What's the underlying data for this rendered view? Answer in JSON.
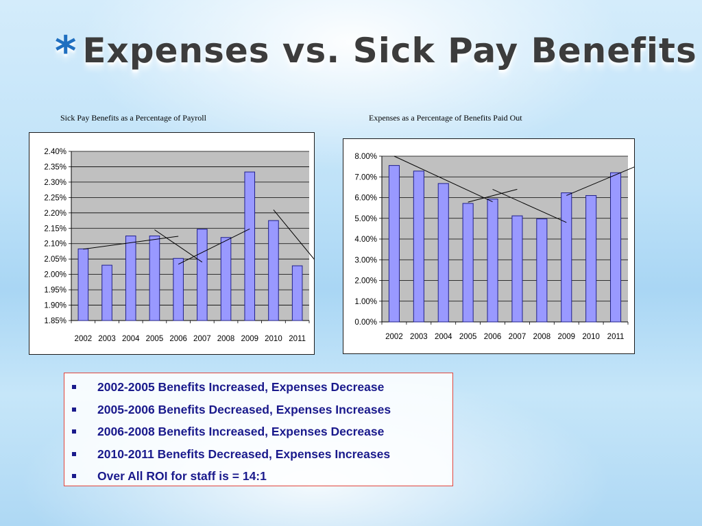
{
  "slide": {
    "title_marker": "*",
    "title": "Expenses vs. Sick Pay Benefits",
    "bullets": [
      "2002-2005 Benefits Increased, Expenses Decrease",
      "2005-2006 Benefits Decreased, Expenses Increases",
      "2006-2008 Benefits Increased, Expenses Decrease",
      "2010-2011 Benefits Decreased, Expenses Increases",
      "Over All ROI for staff is =  14:1"
    ]
  },
  "chart_data": [
    {
      "type": "bar",
      "title": "Sick Pay Benefits as a Percentage of Payroll",
      "categories": [
        "2002",
        "2003",
        "2004",
        "2005",
        "2006",
        "2007",
        "2008",
        "2009",
        "2010",
        "2011"
      ],
      "values": [
        2.083,
        2.03,
        2.125,
        2.125,
        2.052,
        2.147,
        2.12,
        2.333,
        2.175,
        2.028
      ],
      "ylim": [
        1.85,
        2.4
      ],
      "y_ticks": [
        1.85,
        1.9,
        1.95,
        2.0,
        2.05,
        2.1,
        2.15,
        2.2,
        2.25,
        2.3,
        2.35,
        2.4
      ],
      "y_tick_labels": [
        "1.85%",
        "1.90%",
        "1.95%",
        "2.00%",
        "2.05%",
        "2.10%",
        "2.15%",
        "2.20%",
        "2.25%",
        "2.30%",
        "2.35%",
        "2.40%"
      ],
      "grid": true,
      "plot_background": "#c0c0c0",
      "bar_color": "#9999ff",
      "trend_lines": [
        {
          "x": [
            0,
            4
          ],
          "y": [
            2.082,
            2.124
          ]
        },
        {
          "x": [
            3,
            5
          ],
          "y": [
            2.145,
            2.04
          ]
        },
        {
          "x": [
            4,
            7
          ],
          "y": [
            2.033,
            2.148
          ]
        },
        {
          "x": [
            8,
            10
          ],
          "y": [
            2.21,
            2.022
          ]
        }
      ]
    },
    {
      "type": "bar",
      "title": "Expenses as a Percentage of Benefits Paid Out",
      "categories": [
        "2002",
        "2003",
        "2004",
        "2005",
        "2006",
        "2007",
        "2008",
        "2009",
        "2010",
        "2011"
      ],
      "values": [
        7.55,
        7.28,
        6.68,
        5.72,
        5.93,
        5.12,
        4.97,
        6.23,
        6.1,
        7.2
      ],
      "ylim": [
        0,
        8
      ],
      "y_ticks": [
        0,
        1,
        2,
        3,
        4,
        5,
        6,
        7,
        8
      ],
      "y_tick_labels": [
        "0.00%",
        "1.00%",
        "2.00%",
        "3.00%",
        "4.00%",
        "5.00%",
        "6.00%",
        "7.00%",
        "8.00%"
      ],
      "grid": true,
      "plot_background": "#c0c0c0",
      "bar_color": "#9999ff",
      "trend_lines": [
        {
          "x": [
            0,
            4
          ],
          "y": [
            8.0,
            5.8
          ]
        },
        {
          "x": [
            3,
            5
          ],
          "y": [
            5.78,
            6.4
          ]
        },
        {
          "x": [
            4,
            7
          ],
          "y": [
            6.4,
            4.8
          ]
        },
        {
          "x": [
            7,
            10
          ],
          "y": [
            6.1,
            7.6
          ]
        }
      ]
    }
  ]
}
